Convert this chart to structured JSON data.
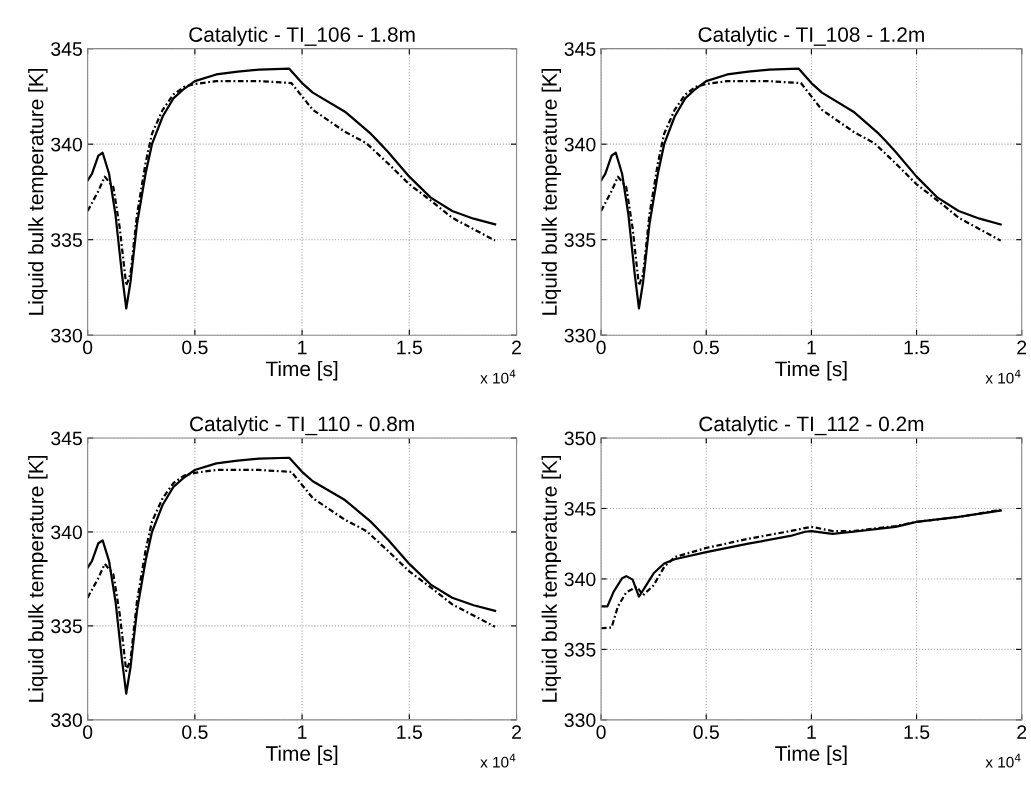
{
  "chart_data": [
    {
      "type": "line",
      "title": "Catalytic - TI_106 - 1.8m",
      "xlabel": "Time [s]",
      "ylabel": "Liquid bulk temperature [K]",
      "annotations": [
        "x 10$^{4}$"
      ],
      "xlim": [
        0,
        2
      ],
      "xticks": [
        0,
        0.5,
        1,
        1.5,
        2
      ],
      "ylim": [
        330,
        345
      ],
      "yticks": [
        330,
        335,
        340,
        345
      ],
      "grid": true,
      "legend": false,
      "series": [
        {
          "color": "#000000",
          "line_style": "solid",
          "x": [
            0,
            0.02,
            0.05,
            0.07,
            0.1,
            0.13,
            0.16,
            0.18,
            0.2,
            0.23,
            0.27,
            0.3,
            0.35,
            0.4,
            0.45,
            0.5,
            0.6,
            0.7,
            0.8,
            0.94,
            1.0,
            1.05,
            1.2,
            1.32,
            1.35,
            1.4,
            1.5,
            1.6,
            1.7,
            1.8,
            1.9
          ],
          "values": [
            338.1,
            338.45,
            339.4,
            339.55,
            338.45,
            336.3,
            333.2,
            331.4,
            332.8,
            335.8,
            338.45,
            340.0,
            341.45,
            342.4,
            342.9,
            343.3,
            343.65,
            343.8,
            343.9,
            343.95,
            343.2,
            342.7,
            341.7,
            340.55,
            340.2,
            339.6,
            338.3,
            337.2,
            336.5,
            336.1,
            335.8
          ]
        },
        {
          "color": "#000000",
          "line_style": "dashdot",
          "x": [
            0,
            0.05,
            0.08,
            0.12,
            0.15,
            0.18,
            0.2,
            0.23,
            0.27,
            0.3,
            0.35,
            0.4,
            0.45,
            0.5,
            0.6,
            0.8,
            0.95,
            1.0,
            1.05,
            1.2,
            1.3,
            1.4,
            1.5,
            1.6,
            1.7,
            1.8,
            1.9
          ],
          "values": [
            336.5,
            337.55,
            338.3,
            337.75,
            335.6,
            332.6,
            333.2,
            336.3,
            339.0,
            340.55,
            341.8,
            342.6,
            343.0,
            343.15,
            343.3,
            343.3,
            343.2,
            342.5,
            341.8,
            340.65,
            340.05,
            339.0,
            337.9,
            337.05,
            336.15,
            335.55,
            334.95
          ]
        }
      ]
    },
    {
      "type": "line",
      "title": "Catalytic - TI_108 - 1.2m",
      "xlabel": "Time [s]",
      "ylabel": "Liquid bulk temperature [K]",
      "annotations": [
        "x 10$^{4}$"
      ],
      "xlim": [
        0,
        2
      ],
      "xticks": [
        0,
        0.5,
        1,
        1.5,
        2
      ],
      "ylim": [
        330,
        345
      ],
      "yticks": [
        330,
        335,
        340,
        345
      ],
      "grid": true,
      "legend": false,
      "series": [
        {
          "color": "#000000",
          "line_style": "solid",
          "x": [
            0,
            0.02,
            0.05,
            0.07,
            0.1,
            0.13,
            0.16,
            0.18,
            0.2,
            0.23,
            0.27,
            0.3,
            0.35,
            0.4,
            0.45,
            0.5,
            0.6,
            0.7,
            0.8,
            0.94,
            1.0,
            1.05,
            1.2,
            1.32,
            1.35,
            1.4,
            1.5,
            1.6,
            1.7,
            1.8,
            1.9
          ],
          "values": [
            338.1,
            338.45,
            339.4,
            339.55,
            338.45,
            336.3,
            333.2,
            331.4,
            332.8,
            335.8,
            338.45,
            340.0,
            341.45,
            342.4,
            342.9,
            343.3,
            343.65,
            343.8,
            343.9,
            343.95,
            343.2,
            342.7,
            341.7,
            340.55,
            340.2,
            339.6,
            338.3,
            337.2,
            336.5,
            336.1,
            335.8
          ]
        },
        {
          "color": "#000000",
          "line_style": "dashdot",
          "x": [
            0,
            0.05,
            0.08,
            0.12,
            0.15,
            0.18,
            0.2,
            0.23,
            0.27,
            0.3,
            0.35,
            0.4,
            0.45,
            0.5,
            0.6,
            0.8,
            0.95,
            1.0,
            1.05,
            1.2,
            1.3,
            1.4,
            1.5,
            1.6,
            1.7,
            1.8,
            1.9
          ],
          "values": [
            336.5,
            337.55,
            338.3,
            337.75,
            335.6,
            332.6,
            333.2,
            336.3,
            339.0,
            340.55,
            341.8,
            342.6,
            343.0,
            343.15,
            343.3,
            343.3,
            343.2,
            342.5,
            341.8,
            340.65,
            340.05,
            339.0,
            337.9,
            337.05,
            336.15,
            335.55,
            334.95
          ]
        }
      ]
    },
    {
      "type": "line",
      "title": "Catalytic - TI_110 - 0.8m",
      "xlabel": "Time [s]",
      "ylabel": "Liquid bulk temperature [K]",
      "annotations": [
        "x 10$^{4}$"
      ],
      "xlim": [
        0,
        2
      ],
      "xticks": [
        0,
        0.5,
        1,
        1.5,
        2
      ],
      "ylim": [
        330,
        345
      ],
      "yticks": [
        330,
        335,
        340,
        345
      ],
      "grid": true,
      "legend": false,
      "series": [
        {
          "color": "#000000",
          "line_style": "solid",
          "x": [
            0,
            0.02,
            0.05,
            0.07,
            0.1,
            0.13,
            0.16,
            0.18,
            0.2,
            0.23,
            0.27,
            0.3,
            0.35,
            0.4,
            0.45,
            0.5,
            0.6,
            0.7,
            0.8,
            0.94,
            1.0,
            1.05,
            1.2,
            1.32,
            1.35,
            1.4,
            1.5,
            1.6,
            1.7,
            1.8,
            1.9
          ],
          "values": [
            338.1,
            338.45,
            339.4,
            339.55,
            338.45,
            336.3,
            333.2,
            331.4,
            332.8,
            335.8,
            338.45,
            340.0,
            341.45,
            342.4,
            342.9,
            343.3,
            343.65,
            343.8,
            343.9,
            343.95,
            343.2,
            342.7,
            341.7,
            340.55,
            340.2,
            339.6,
            338.3,
            337.2,
            336.5,
            336.1,
            335.8
          ]
        },
        {
          "color": "#000000",
          "line_style": "dashdot",
          "x": [
            0,
            0.05,
            0.08,
            0.12,
            0.15,
            0.18,
            0.2,
            0.23,
            0.27,
            0.3,
            0.35,
            0.4,
            0.45,
            0.5,
            0.6,
            0.8,
            0.95,
            1.0,
            1.05,
            1.2,
            1.3,
            1.4,
            1.5,
            1.6,
            1.7,
            1.8,
            1.9
          ],
          "values": [
            336.5,
            337.55,
            338.3,
            337.75,
            335.6,
            332.6,
            333.2,
            336.3,
            339.0,
            340.55,
            341.8,
            342.6,
            343.0,
            343.15,
            343.3,
            343.3,
            343.2,
            342.5,
            341.8,
            340.65,
            340.05,
            339.0,
            337.9,
            337.05,
            336.15,
            335.55,
            334.95
          ]
        }
      ]
    },
    {
      "type": "line",
      "title": "Catalytic - TI_112 - 0.2m",
      "xlabel": "Time [s]",
      "ylabel": "Liquid bulk temperature [K]",
      "annotations": [
        "x 10$^{4}$"
      ],
      "xlim": [
        0,
        2
      ],
      "xticks": [
        0,
        0.5,
        1,
        1.5,
        2
      ],
      "ylim": [
        330,
        350
      ],
      "yticks": [
        330,
        335,
        340,
        345,
        350
      ],
      "grid": true,
      "legend": false,
      "series": [
        {
          "color": "#000000",
          "line_style": "solid",
          "x": [
            0,
            0.03,
            0.06,
            0.1,
            0.12,
            0.15,
            0.18,
            0.2,
            0.25,
            0.3,
            0.35,
            0.5,
            0.7,
            0.9,
            0.97,
            1.0,
            1.1,
            1.2,
            1.4,
            1.5,
            1.7,
            1.9
          ],
          "values": [
            338.05,
            338.05,
            339.1,
            340.05,
            340.2,
            339.95,
            338.75,
            339.2,
            340.4,
            341.1,
            341.4,
            341.9,
            342.5,
            343.05,
            343.35,
            343.4,
            343.2,
            343.35,
            343.7,
            344.05,
            344.4,
            344.85
          ]
        },
        {
          "color": "#000000",
          "line_style": "dashdot",
          "x": [
            0,
            0.05,
            0.08,
            0.12,
            0.17,
            0.2,
            0.25,
            0.3,
            0.35,
            0.5,
            0.7,
            0.9,
            1.0,
            1.1,
            1.2,
            1.4,
            1.5,
            1.7,
            1.9
          ],
          "values": [
            336.5,
            336.55,
            338.05,
            339.05,
            339.45,
            338.85,
            339.55,
            340.85,
            341.55,
            342.2,
            342.85,
            343.4,
            343.7,
            343.4,
            343.4,
            343.75,
            344.05,
            344.4,
            344.9
          ]
        }
      ]
    }
  ]
}
